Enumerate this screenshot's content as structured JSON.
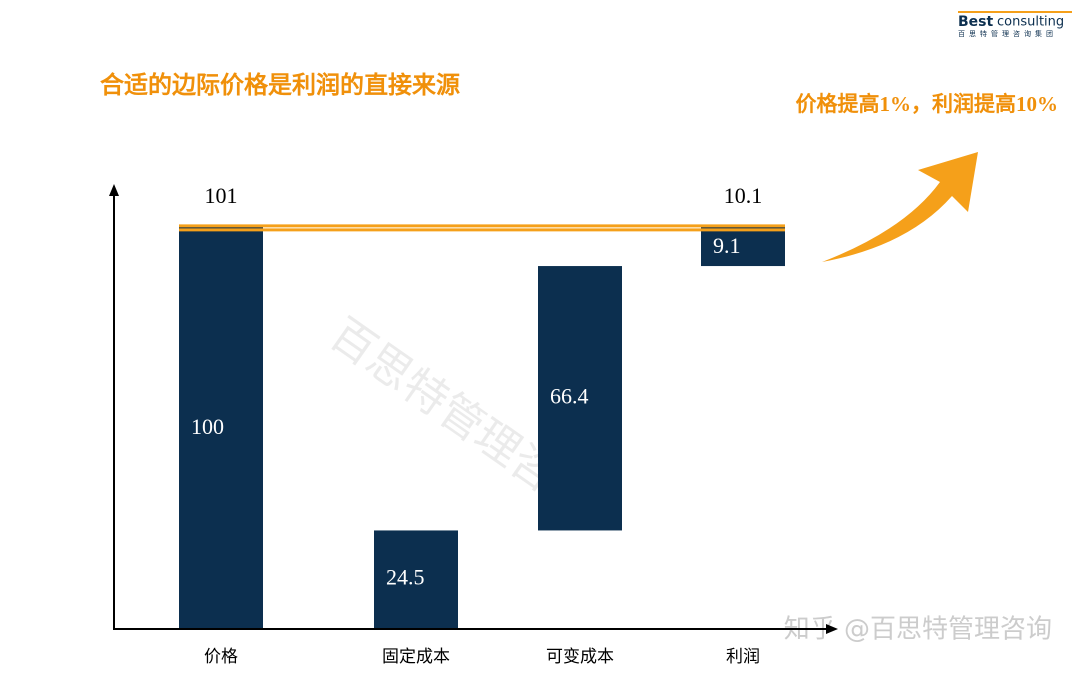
{
  "chart_data": {
    "type": "waterfall",
    "title": "合适的边际价格是利润的直接来源",
    "annotation": "价格提高1%，利润提高10%",
    "categories": [
      "价格",
      "固定成本",
      "可变成本",
      "利润"
    ],
    "values": [
      100,
      24.5,
      66.4,
      9.1
    ],
    "color": "#0c2f4f",
    "raised_values": [
      101,
      10.1
    ],
    "highlight_color": "#f5a01a",
    "ylim": [
      0,
      110
    ]
  },
  "logo": {
    "brand": "Best",
    "word": "consulting",
    "subtitle": "百思特管理咨询集团"
  },
  "watermark": "百思特管理咨询",
  "footer_credit": "知乎 @百思特管理咨询"
}
